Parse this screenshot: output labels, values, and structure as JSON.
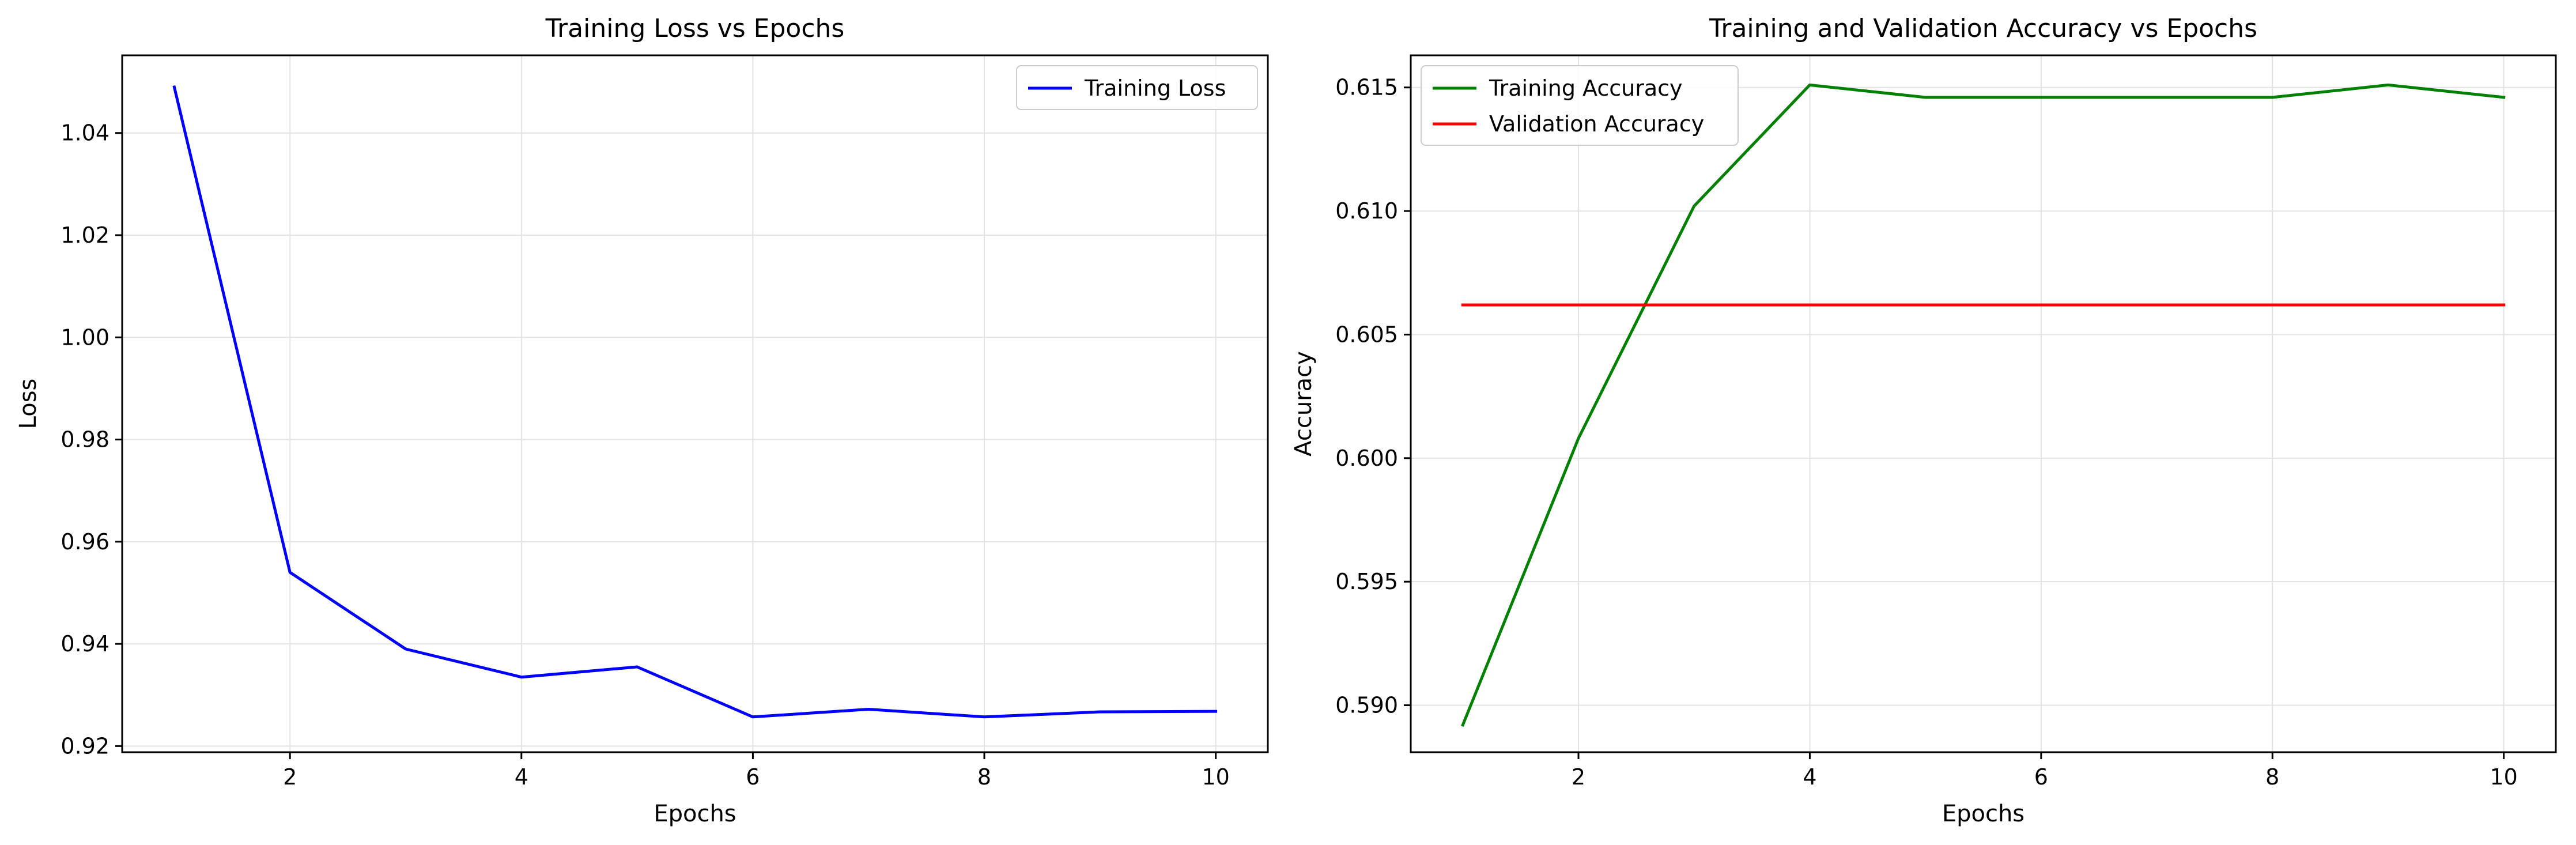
{
  "chart_data": [
    {
      "type": "line",
      "title": "Training Loss vs Epochs",
      "xlabel": "Epochs",
      "ylabel": "Loss",
      "xlim": [
        0.55,
        10.45
      ],
      "ylim": [
        0.9188,
        1.0552
      ],
      "xticks": [
        2,
        4,
        6,
        8,
        10
      ],
      "xtick_labels": [
        "2",
        "4",
        "6",
        "8",
        "10"
      ],
      "yticks": [
        0.92,
        0.94,
        0.96,
        0.98,
        1.0,
        1.02,
        1.04
      ],
      "ytick_labels": [
        "0.92",
        "0.94",
        "0.96",
        "0.98",
        "1.00",
        "1.02",
        "1.04"
      ],
      "grid": true,
      "legend_position": "upper right",
      "x": [
        1,
        2,
        3,
        4,
        5,
        6,
        7,
        8,
        9,
        10
      ],
      "series": [
        {
          "name": "Training Loss",
          "color": "#0000ff",
          "values": [
            1.049,
            0.954,
            0.939,
            0.9335,
            0.9355,
            0.9257,
            0.9272,
            0.9257,
            0.9267,
            0.9268
          ]
        }
      ]
    },
    {
      "type": "line",
      "title": "Training and Validation Accuracy vs Epochs",
      "xlabel": "Epochs",
      "ylabel": "Accuracy",
      "xlim": [
        0.55,
        10.45
      ],
      "ylim": [
        0.5881,
        0.6163
      ],
      "xticks": [
        2,
        4,
        6,
        8,
        10
      ],
      "xtick_labels": [
        "2",
        "4",
        "6",
        "8",
        "10"
      ],
      "yticks": [
        0.59,
        0.595,
        0.6,
        0.605,
        0.61,
        0.615
      ],
      "ytick_labels": [
        "0.590",
        "0.595",
        "0.600",
        "0.605",
        "0.610",
        "0.615"
      ],
      "grid": true,
      "legend_position": "upper left",
      "x": [
        1,
        2,
        3,
        4,
        5,
        6,
        7,
        8,
        9,
        10
      ],
      "series": [
        {
          "name": "Training Accuracy",
          "color": "#008000",
          "values": [
            0.5892,
            0.6008,
            0.6102,
            0.6151,
            0.6146,
            0.6146,
            0.6146,
            0.6146,
            0.6151,
            0.6146
          ]
        },
        {
          "name": "Validation Accuracy",
          "color": "#ff0000",
          "values": [
            0.6062,
            0.6062,
            0.6062,
            0.6062,
            0.6062,
            0.6062,
            0.6062,
            0.6062,
            0.6062,
            0.6062
          ]
        }
      ]
    }
  ]
}
